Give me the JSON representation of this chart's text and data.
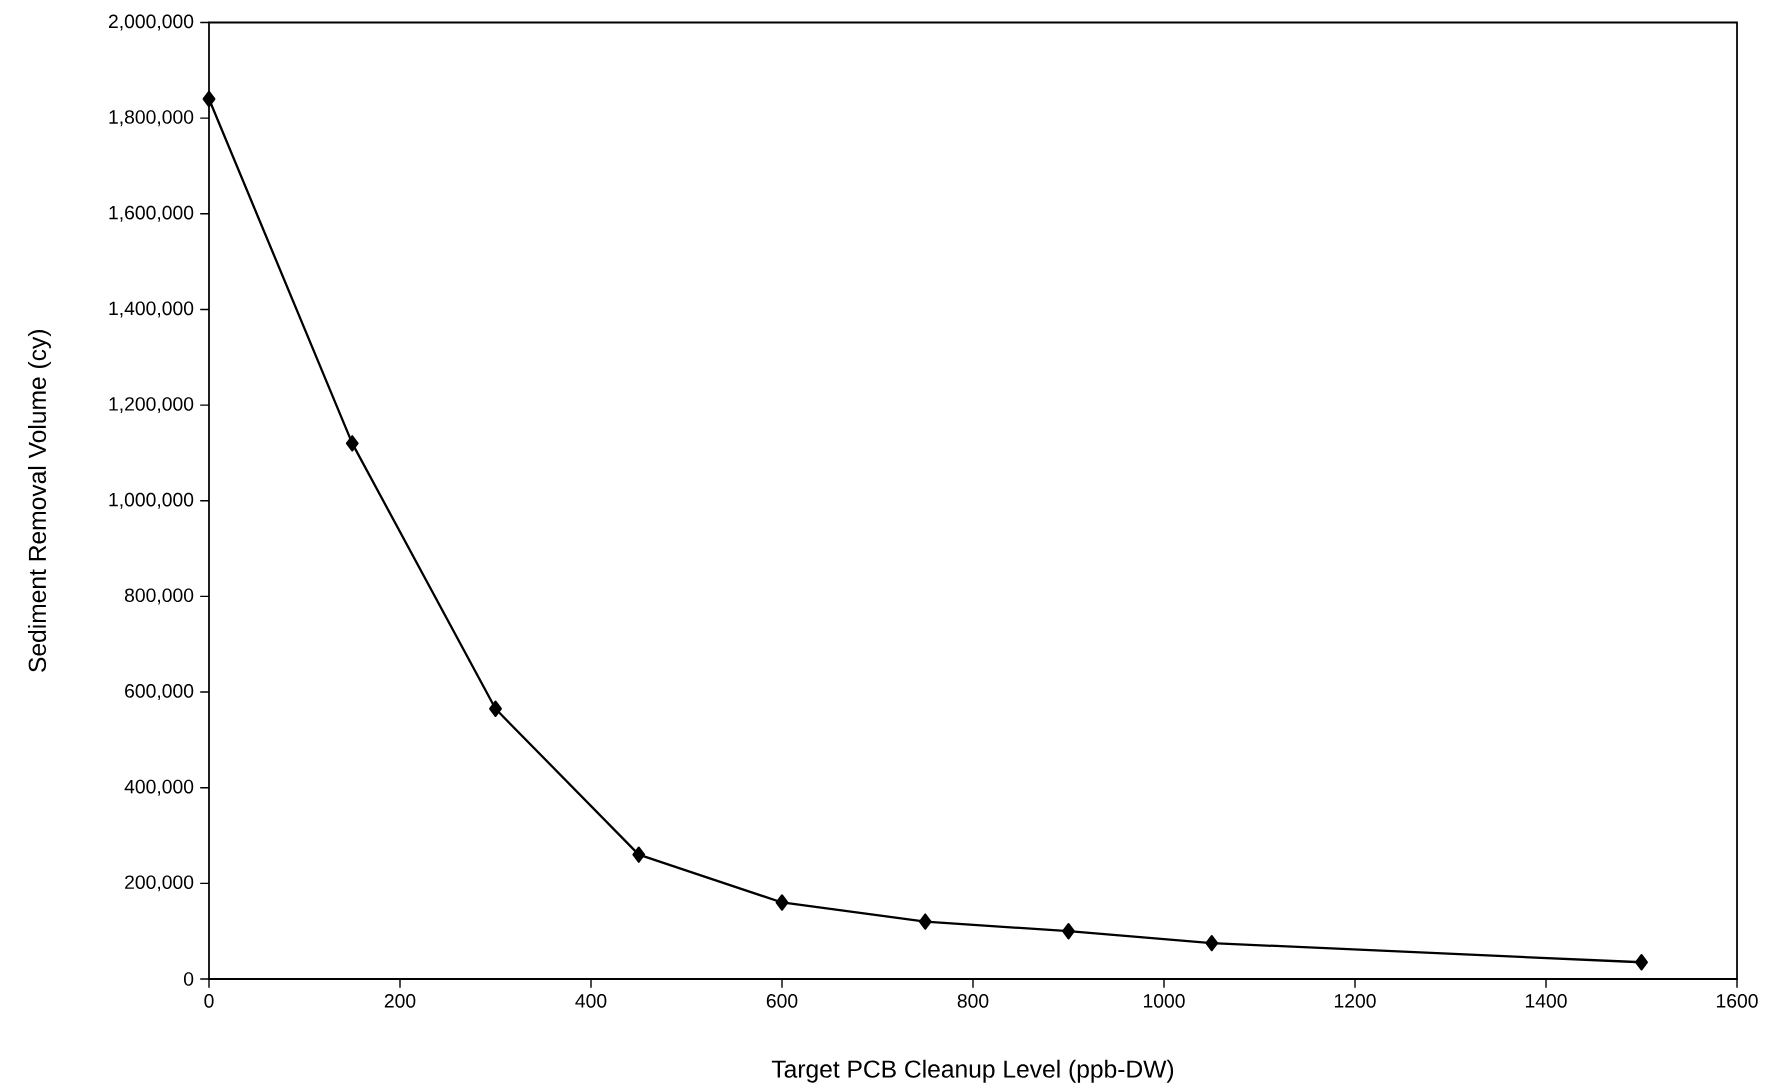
{
  "chart_data": {
    "type": "line",
    "xlabel": "Target PCB Cleanup Level (ppb-DW)",
    "ylabel": "Sediment Removal Volume (cy)",
    "x": [
      0,
      150,
      300,
      450,
      600,
      750,
      900,
      1050,
      1500
    ],
    "series": [
      {
        "color": "#000000",
        "values": [
          1840000,
          1120000,
          565000,
          260000,
          160000,
          120000,
          100000,
          75000,
          35000
        ]
      }
    ],
    "xlim": [
      0,
      1600
    ],
    "xticks": [
      0,
      200,
      400,
      600,
      800,
      1000,
      1200,
      1400,
      1600
    ],
    "ylim": [
      0,
      2000000
    ],
    "yticks": [
      0,
      {
        "value": 200000,
        "label": "200,000"
      },
      {
        "value": 400000,
        "label": "400,000"
      },
      {
        "value": 600000,
        "label": "600,000"
      },
      {
        "value": 800000,
        "label": "800,000"
      },
      {
        "value": 1000000,
        "label": "1,000,000"
      },
      {
        "value": 1200000,
        "label": "1,200,000"
      },
      {
        "value": 1400000,
        "label": "1,400,000"
      },
      {
        "value": 1600000,
        "label": "1,600,000"
      },
      {
        "value": 1800000,
        "label": "1,800,000"
      },
      {
        "value": 2000000,
        "label": "2,000,000"
      }
    ],
    "marker": "diamond",
    "line_style": "solid"
  }
}
